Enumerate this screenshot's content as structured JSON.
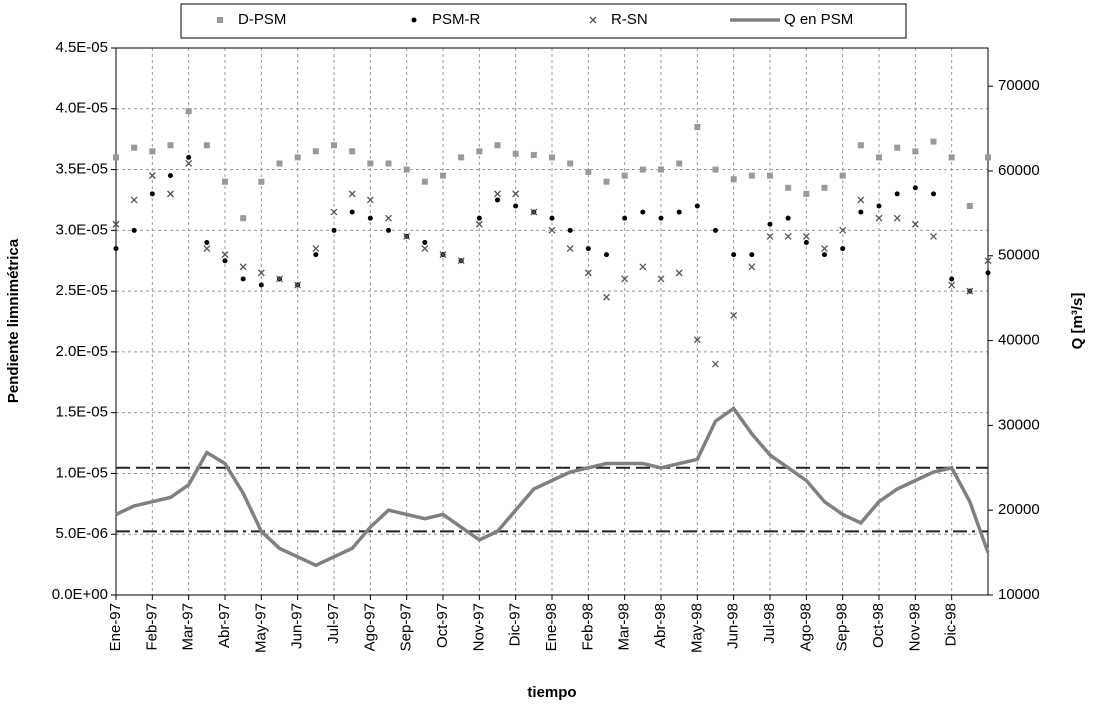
{
  "chart_data": {
    "type": "scatter",
    "y_label": "Pendiente limnimétrica",
    "y2_label": "Q [m³/s]",
    "x_label": "tiempo",
    "xlim": [
      0,
      24
    ],
    "xticks": [
      {
        "value": 0,
        "label": "Ene-97"
      },
      {
        "value": 1,
        "label": "Feb-97"
      },
      {
        "value": 2,
        "label": "Mar-97"
      },
      {
        "value": 3,
        "label": "Abr-97"
      },
      {
        "value": 4,
        "label": "May-97"
      },
      {
        "value": 5,
        "label": "Jun-97"
      },
      {
        "value": 6,
        "label": "Jul-97"
      },
      {
        "value": 7,
        "label": "Ago-97"
      },
      {
        "value": 8,
        "label": "Sep-97"
      },
      {
        "value": 9,
        "label": "Oct-97"
      },
      {
        "value": 10,
        "label": "Nov-97"
      },
      {
        "value": 11,
        "label": "Dic-97"
      },
      {
        "value": 12,
        "label": "Ene-98"
      },
      {
        "value": 13,
        "label": "Feb-98"
      },
      {
        "value": 14,
        "label": "Mar-98"
      },
      {
        "value": 15,
        "label": "Abr-98"
      },
      {
        "value": 16,
        "label": "May-98"
      },
      {
        "value": 17,
        "label": "Jun-98"
      },
      {
        "value": 18,
        "label": "Jul-98"
      },
      {
        "value": 19,
        "label": "Ago-98"
      },
      {
        "value": 20,
        "label": "Sep-98"
      },
      {
        "value": 21,
        "label": "Oct-98"
      },
      {
        "value": 22,
        "label": "Nov-98"
      },
      {
        "value": 23,
        "label": "Dic-98"
      }
    ],
    "ylim": [
      0,
      4.5e-05
    ],
    "yticks": [
      {
        "value": 0,
        "label": "0.0E+00"
      },
      {
        "value": 5e-06,
        "label": "5.0E-06"
      },
      {
        "value": 1e-05,
        "label": "1.0E-05"
      },
      {
        "value": 1.5e-05,
        "label": "1.5E-05"
      },
      {
        "value": 2e-05,
        "label": "2.0E-05"
      },
      {
        "value": 2.5e-05,
        "label": "2.5E-05"
      },
      {
        "value": 3e-05,
        "label": "3.0E-05"
      },
      {
        "value": 3.5e-05,
        "label": "3.5E-05"
      },
      {
        "value": 4e-05,
        "label": "4.0E-05"
      },
      {
        "value": 4.5e-05,
        "label": "4.5E-05"
      }
    ],
    "y2lim": [
      10000,
      74500
    ],
    "y2ticks": [
      10000,
      20000,
      30000,
      40000,
      50000,
      60000,
      70000
    ],
    "grid": true,
    "legend": "top",
    "x": [
      0,
      0.5,
      1,
      1.5,
      2,
      2.5,
      3,
      3.5,
      4,
      4.5,
      5,
      5.5,
      6,
      6.5,
      7,
      7.5,
      8,
      8.5,
      9,
      9.5,
      10,
      10.5,
      11,
      11.5,
      12,
      12.5,
      13,
      13.5,
      14,
      14.5,
      15,
      15.5,
      16,
      16.5,
      17,
      17.5,
      18,
      18.5,
      19,
      19.5,
      20,
      20.5,
      21,
      21.5,
      22,
      22.5,
      23,
      23.5,
      24
    ],
    "series": [
      {
        "name": "D-PSM",
        "color": "#999999",
        "marker": "square",
        "values": [
          3.6e-05,
          3.68e-05,
          3.65e-05,
          3.7e-05,
          3.98e-05,
          3.7e-05,
          3.4e-05,
          3.1e-05,
          3.4e-05,
          3.55e-05,
          3.6e-05,
          3.65e-05,
          3.7e-05,
          3.65e-05,
          3.55e-05,
          3.55e-05,
          3.5e-05,
          3.4e-05,
          3.45e-05,
          3.6e-05,
          3.65e-05,
          3.7e-05,
          3.63e-05,
          3.62e-05,
          3.6e-05,
          3.55e-05,
          3.48e-05,
          3.4e-05,
          3.45e-05,
          3.5e-05,
          3.5e-05,
          3.55e-05,
          3.85e-05,
          3.5e-05,
          3.42e-05,
          3.45e-05,
          3.45e-05,
          3.35e-05,
          3.3e-05,
          3.35e-05,
          3.45e-05,
          3.7e-05,
          3.6e-05,
          3.68e-05,
          3.65e-05,
          3.73e-05,
          3.6e-05,
          3.2e-05,
          3.6e-05
        ]
      },
      {
        "name": "PSM-R",
        "color": "#000000",
        "marker": "dot",
        "values": [
          2.85e-05,
          3e-05,
          3.3e-05,
          3.45e-05,
          3.6e-05,
          2.9e-05,
          2.75e-05,
          2.6e-05,
          2.55e-05,
          2.6e-05,
          2.55e-05,
          2.8e-05,
          3e-05,
          3.15e-05,
          3.1e-05,
          3e-05,
          2.95e-05,
          2.9e-05,
          2.8e-05,
          2.75e-05,
          3.1e-05,
          3.25e-05,
          3.2e-05,
          3.15e-05,
          3.1e-05,
          3e-05,
          2.85e-05,
          2.8e-05,
          3.1e-05,
          3.15e-05,
          3.1e-05,
          3.15e-05,
          3.2e-05,
          3e-05,
          2.8e-05,
          2.8e-05,
          3.05e-05,
          3.1e-05,
          2.9e-05,
          2.8e-05,
          2.85e-05,
          3.15e-05,
          3.2e-05,
          3.3e-05,
          3.35e-05,
          3.3e-05,
          2.6e-05,
          2.5e-05,
          2.65e-05
        ]
      },
      {
        "name": "R-SN",
        "color": "#555555",
        "marker": "x",
        "values": [
          3.05e-05,
          3.25e-05,
          3.45e-05,
          3.3e-05,
          3.55e-05,
          2.85e-05,
          2.8e-05,
          2.7e-05,
          2.65e-05,
          2.6e-05,
          2.55e-05,
          2.85e-05,
          3.15e-05,
          3.3e-05,
          3.25e-05,
          3.1e-05,
          2.95e-05,
          2.85e-05,
          2.8e-05,
          2.75e-05,
          3.05e-05,
          3.3e-05,
          3.3e-05,
          3.15e-05,
          3e-05,
          2.85e-05,
          2.65e-05,
          2.45e-05,
          2.6e-05,
          2.7e-05,
          2.6e-05,
          2.65e-05,
          2.1e-05,
          1.9e-05,
          2.3e-05,
          2.7e-05,
          2.95e-05,
          2.95e-05,
          2.95e-05,
          2.85e-05,
          3e-05,
          3.25e-05,
          3.1e-05,
          3.1e-05,
          3.05e-05,
          2.95e-05,
          2.55e-05,
          2.5e-05,
          2.75e-05
        ]
      },
      {
        "name": "Q en PSM",
        "color": "#808080",
        "marker": "line",
        "axis": "y2",
        "values": [
          19500,
          20500,
          21000,
          21500,
          23000,
          26800,
          25500,
          22000,
          17500,
          15500,
          14500,
          13500,
          14500,
          15500,
          18000,
          20000,
          19500,
          19000,
          19500,
          18000,
          16500,
          17500,
          20000,
          22500,
          23500,
          24500,
          25000,
          25500,
          25500,
          25500,
          25000,
          25500,
          26000,
          30500,
          32000,
          29000,
          26500,
          25000,
          23500,
          21000,
          19500,
          18500,
          21000,
          22500,
          23500,
          24500,
          25000,
          21000,
          15000
        ]
      }
    ],
    "hlines": [
      {
        "value": 25000,
        "axis": "y2",
        "dash": "dash"
      },
      {
        "value": 17500,
        "axis": "y2",
        "dash": "dashdot"
      }
    ]
  }
}
